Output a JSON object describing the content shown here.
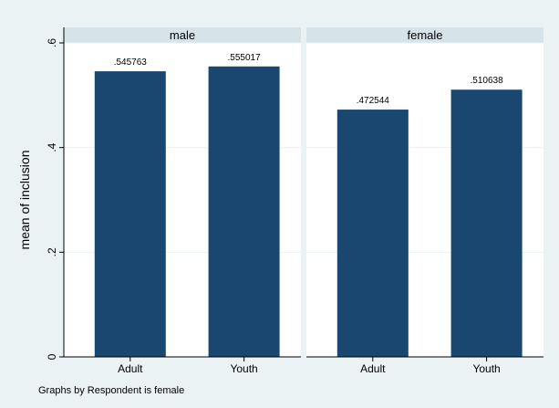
{
  "chart_data": {
    "type": "bar",
    "ylabel": "mean of inclusion",
    "note": "Graphs by Respondent is female",
    "ylim": [
      0,
      0.6
    ],
    "yticks": [
      {
        "value": 0,
        "label": "0"
      },
      {
        "value": 0.2,
        "label": ".2"
      },
      {
        "value": 0.4,
        "label": ".4"
      },
      {
        "value": 0.6,
        "label": ".6"
      }
    ],
    "grid": true,
    "panels": [
      {
        "title": "male",
        "categories": [
          "Adult",
          "Youth"
        ],
        "values": [
          0.545763,
          0.555017
        ],
        "value_labels": [
          ".545763",
          ".555017"
        ]
      },
      {
        "title": "female",
        "categories": [
          "Adult",
          "Youth"
        ],
        "values": [
          0.472544,
          0.510638
        ],
        "value_labels": [
          ".472544",
          ".510638"
        ]
      }
    ],
    "colors": {
      "outer_background": "#eaf2f3",
      "plot_background": "#ffffff",
      "strip_background": "#d6e3e8",
      "bar": "#1a476f",
      "grid": "#eaf2f3",
      "axis": "#000000",
      "text": "#000000"
    }
  }
}
